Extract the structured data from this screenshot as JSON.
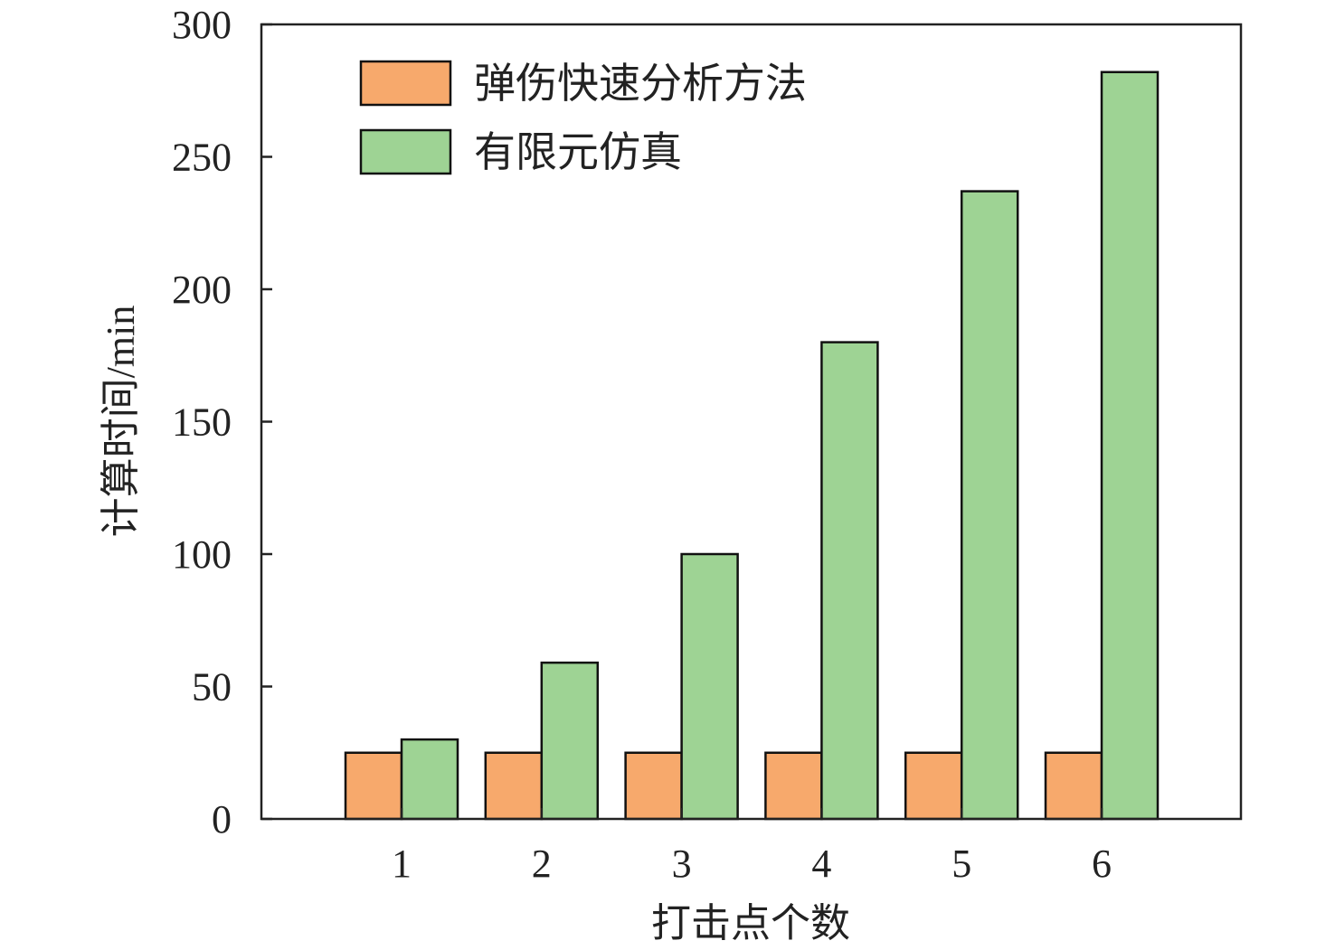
{
  "chart_data": {
    "type": "bar",
    "title": "",
    "xlabel": "打击点个数",
    "ylabel": "计算时间/min",
    "categories": [
      "1",
      "2",
      "3",
      "4",
      "5",
      "6"
    ],
    "ylim": [
      0,
      300
    ],
    "yticks": [
      0,
      50,
      100,
      150,
      200,
      250,
      300
    ],
    "grid": false,
    "legend_position": "top-left",
    "series": [
      {
        "name": "弹伤快速分析方法",
        "color": "#F7A96C",
        "values": [
          25,
          25,
          25,
          25,
          25,
          25
        ]
      },
      {
        "name": "有限元仿真",
        "color": "#9ED394",
        "values": [
          30,
          59,
          100,
          180,
          237,
          282
        ]
      }
    ]
  }
}
